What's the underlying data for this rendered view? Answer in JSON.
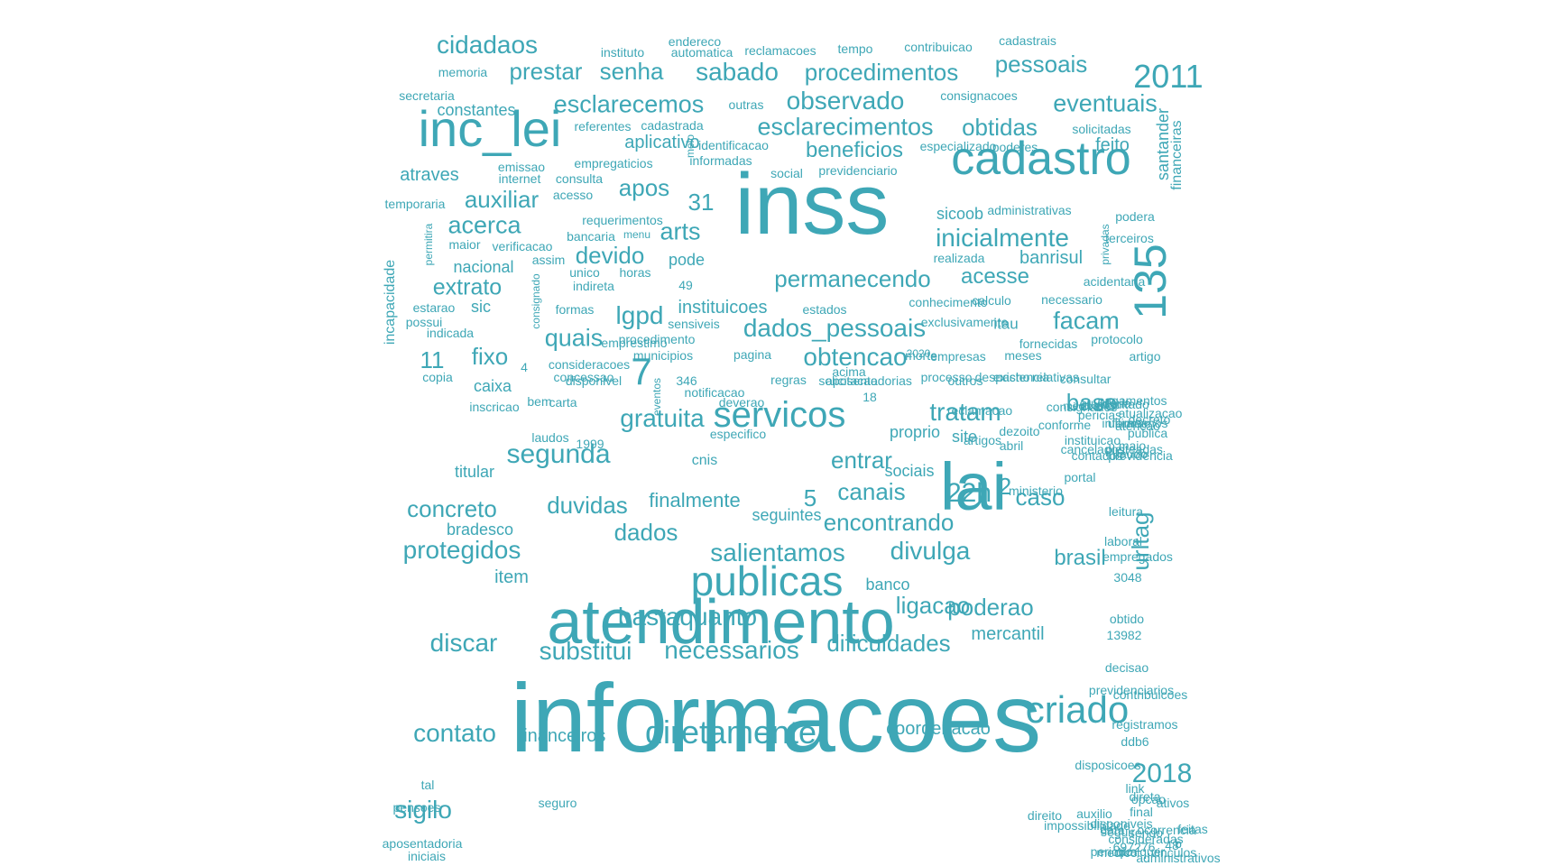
{
  "cloud": {
    "color": "#3ea7b6",
    "words": [
      "informacoes",
      "inss",
      "atendimento",
      "lai",
      "cadastro",
      "inc_lei",
      "publicas",
      "135",
      "servicos",
      "criado",
      "diretamente",
      "7",
      "2011",
      "2018",
      "cidadaos",
      "prestar",
      "senha",
      "sabado",
      "procedimentos",
      "pessoais",
      "esclarecemos",
      "observado",
      "eventuais",
      "esclarecimentos",
      "obtidas",
      "beneficios",
      "feito",
      "apos",
      "31",
      "auxiliar",
      "acerca",
      "arts",
      "devido",
      "inicialmente",
      "acesse",
      "permanecendo",
      "banrisul",
      "extrato",
      "lgpd",
      "instituicoes",
      "facam",
      "dados_pessoais",
      "quais",
      "fixo",
      "11",
      "obtencao",
      "gratuita",
      "tratam",
      "base",
      "segunda",
      "entrar",
      "22h",
      "5",
      "2",
      "canais",
      "caso",
      "duvidas",
      "concreto",
      "finalmente",
      "encontrando",
      "dados",
      "protegidos",
      "salientamos",
      "divulga",
      "brasil",
      "urltag",
      "bastaquanto",
      "ligacao",
      "poderao",
      "discar",
      "substitui",
      "necessarios",
      "dificuldades",
      "mercantil",
      "contato",
      "financeiros",
      "coordenacao",
      "sigilo",
      "aplicativo",
      "constantes",
      "atraves",
      "sicoob",
      "nacional",
      "pode",
      "itau",
      "sic",
      "caixa",
      "item",
      "banco",
      "sociais",
      "site",
      "proprio",
      "titular",
      "seguintes",
      "bradesco",
      "cnis",
      "incapacidade",
      "santander",
      "financeiras",
      "memoria",
      "secretaria",
      "instituto",
      "endereco",
      "automatica",
      "reclamacoes",
      "tempo",
      "contribuicao",
      "cadastrais",
      "consignacoes",
      "outras",
      "referentes",
      "cadastrada",
      "meio",
      "identificacao",
      "informadas",
      "especializado",
      "poderes",
      "solicitadas",
      "emissao",
      "empregaticios",
      "internet",
      "consulta",
      "social",
      "previdenciario",
      "temporaria",
      "acesso",
      "administrativas",
      "podera",
      "requerimentos",
      "menu",
      "permitira",
      "maior",
      "verificacao",
      "bancaria",
      "terceiros",
      "assim",
      "unico",
      "horas",
      "realizada",
      "privadas",
      "acidentaria",
      "indireta",
      "49",
      "consignado",
      "calculo",
      "necessario",
      "conhecimento",
      "estarao",
      "formas",
      "estados",
      "exclusivamente",
      "possui",
      "sensiveis",
      "indicada",
      "emprestimo",
      "municipios",
      "procedimento",
      "pagina",
      "fornecidas",
      "protocolo",
      "empresas",
      "meses",
      "morte",
      "artigo",
      "2020",
      "consideracoes",
      "4",
      "disponivel",
      "outros",
      "existencia",
      "despacho",
      "acima",
      "concessao",
      "relativas",
      "solicitacao",
      "346",
      "regras",
      "aposentadorias",
      "processo",
      "consultar",
      "copia",
      "notificacao",
      "eventos",
      "18",
      "consignados",
      "ouvidoria",
      "reclamacao",
      "medicas",
      "pagamentos",
      "resultado",
      "bem",
      "inscricao",
      "carta",
      "deverao",
      "artigos",
      "atualizacao",
      "decreto",
      "publica",
      "atencao",
      "ultimos",
      "dezoito",
      "instituicao",
      "conforme",
      "abril",
      "especifico",
      "contados",
      "laudos",
      "1999",
      "maio",
      "informamos",
      "pericias",
      "cancelados",
      "ministerio",
      "laudo",
      "previdencia",
      "pleiteadas",
      "portal",
      "leitura",
      "laboral",
      "empregados",
      "3048",
      "obtido",
      "13982",
      "decisao",
      "previdenciarios",
      "contribuicoes",
      "registramos",
      "ddb6",
      "disposicoes",
      "link",
      "direta",
      "ativos",
      "sendo",
      "tal",
      "pensoes",
      "seguro",
      "direito",
      "impossibilidade",
      "medico",
      "aposentadoria",
      "iniciais",
      "feitas",
      "ocorrencia",
      "b",
      "consideradas",
      "data",
      "auxilio",
      "final",
      "periodo",
      "disponiveis",
      "opcao",
      "697276",
      "seguir",
      "qualquer",
      "48",
      "vinculos",
      "administrativos",
      "realizado",
      "uniao",
      "relacionados",
      "consumidor",
      "repercutem",
      "antecipacoes",
      "agendamento",
      "solicitacoes",
      "ratam",
      "devera",
      "podem",
      "requerimento",
      "celular",
      "beneficio",
      "emprestimos",
      "medicos",
      "numero",
      "resolvidas",
      "segurados",
      "sistema",
      "acidentarias",
      "respectivos",
      "presencial",
      "concedido",
      "dentro",
      "relacao",
      "recuperacao",
      "adequacao",
      "paragrafo",
      "administracao"
    ]
  }
}
